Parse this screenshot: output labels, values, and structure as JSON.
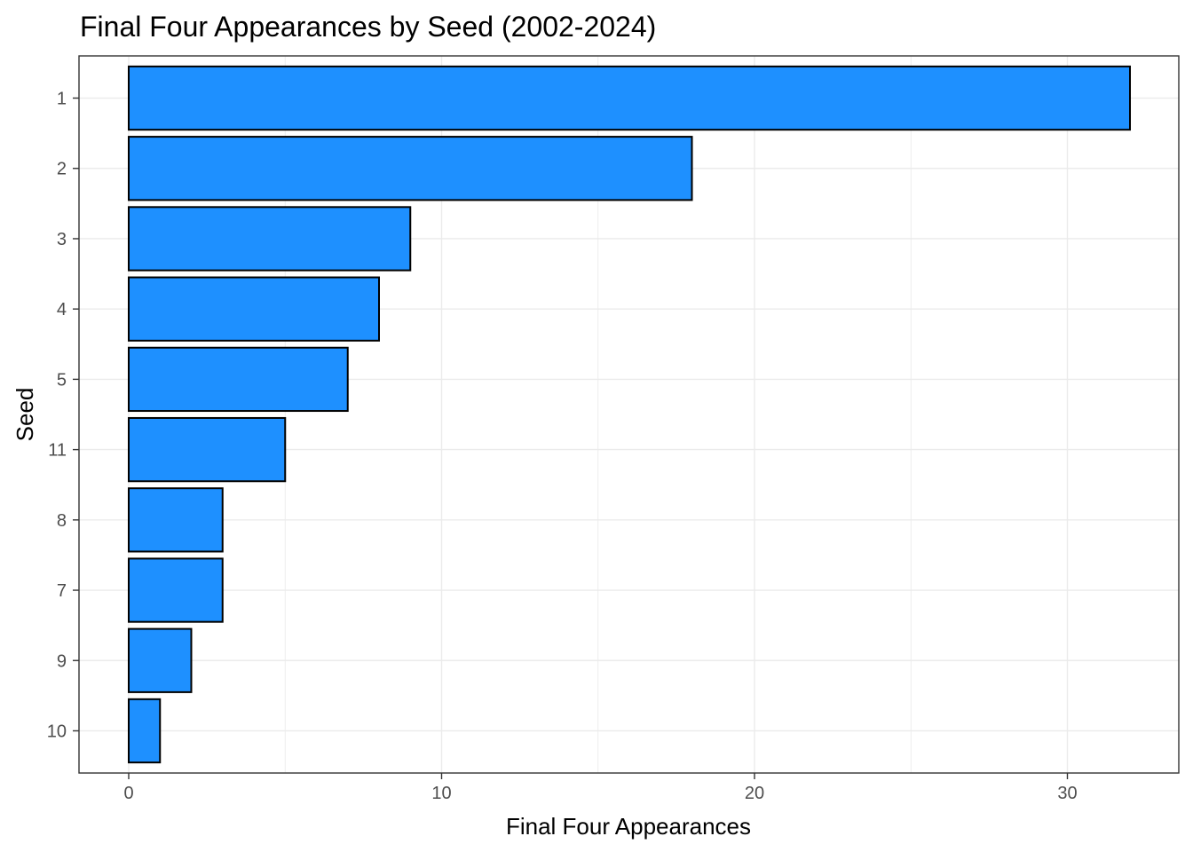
{
  "chart_data": {
    "type": "bar",
    "orientation": "horizontal",
    "title": "Final Four Appearances by Seed (2002-2024)",
    "xlabel": "Final Four Appearances",
    "ylabel": "Seed",
    "categories": [
      "1",
      "2",
      "3",
      "4",
      "5",
      "11",
      "8",
      "7",
      "9",
      "10"
    ],
    "values": [
      32,
      18,
      9,
      8,
      7,
      5,
      3,
      3,
      2,
      1
    ],
    "xlim": [
      0,
      33.6
    ],
    "xticks": [
      0,
      10,
      20,
      30
    ],
    "xtick_labels": [
      "0",
      "10",
      "20",
      "30"
    ],
    "grid": true,
    "legend": "none",
    "colors": {
      "bar_fill": "#1E90FF",
      "bar_outline": "#000000",
      "grid": "#EBEBEB",
      "border": "#333333"
    }
  }
}
